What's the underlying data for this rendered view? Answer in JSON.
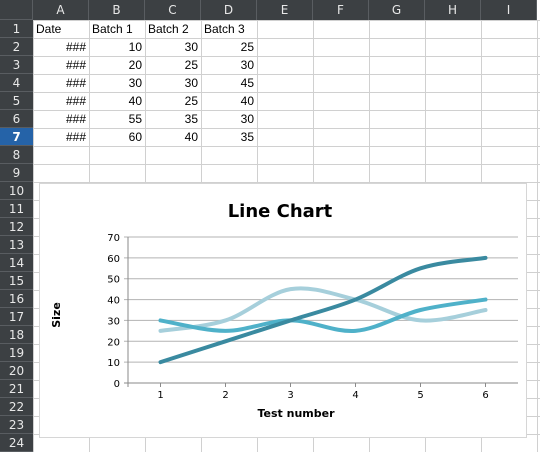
{
  "columns": [
    "A",
    "B",
    "C",
    "D",
    "E",
    "F",
    "G",
    "H",
    "I"
  ],
  "rows": [
    "1",
    "2",
    "3",
    "4",
    "5",
    "6",
    "7",
    "8",
    "9",
    "10",
    "11",
    "12",
    "13",
    "14",
    "15",
    "16",
    "17",
    "18",
    "19",
    "20",
    "21",
    "22",
    "23",
    "24"
  ],
  "active_row": "7",
  "table": {
    "headers": [
      "Date",
      "Batch 1",
      "Batch 2",
      "Batch 3"
    ],
    "rows": [
      [
        "###",
        "10",
        "30",
        "25"
      ],
      [
        "###",
        "20",
        "25",
        "30"
      ],
      [
        "###",
        "30",
        "30",
        "45"
      ],
      [
        "###",
        "40",
        "25",
        "40"
      ],
      [
        "###",
        "55",
        "35",
        "30"
      ],
      [
        "###",
        "60",
        "40",
        "35"
      ]
    ]
  },
  "chart_data": {
    "type": "line",
    "title": "Line Chart",
    "xlabel": "Test number",
    "ylabel": "Size",
    "x": [
      1,
      2,
      3,
      4,
      5,
      6
    ],
    "ylim": [
      0,
      70
    ],
    "yticks": [
      0,
      10,
      20,
      30,
      40,
      50,
      60,
      70
    ],
    "grid": true,
    "smooth": true,
    "series": [
      {
        "values": [
          10,
          20,
          30,
          40,
          55,
          60
        ],
        "color": "#3a8aa0"
      },
      {
        "values": [
          30,
          25,
          30,
          25,
          35,
          40
        ],
        "color": "#4fb1c9"
      },
      {
        "values": [
          25,
          30,
          45,
          40,
          30,
          35
        ],
        "color": "#a6cfdb"
      }
    ]
  }
}
